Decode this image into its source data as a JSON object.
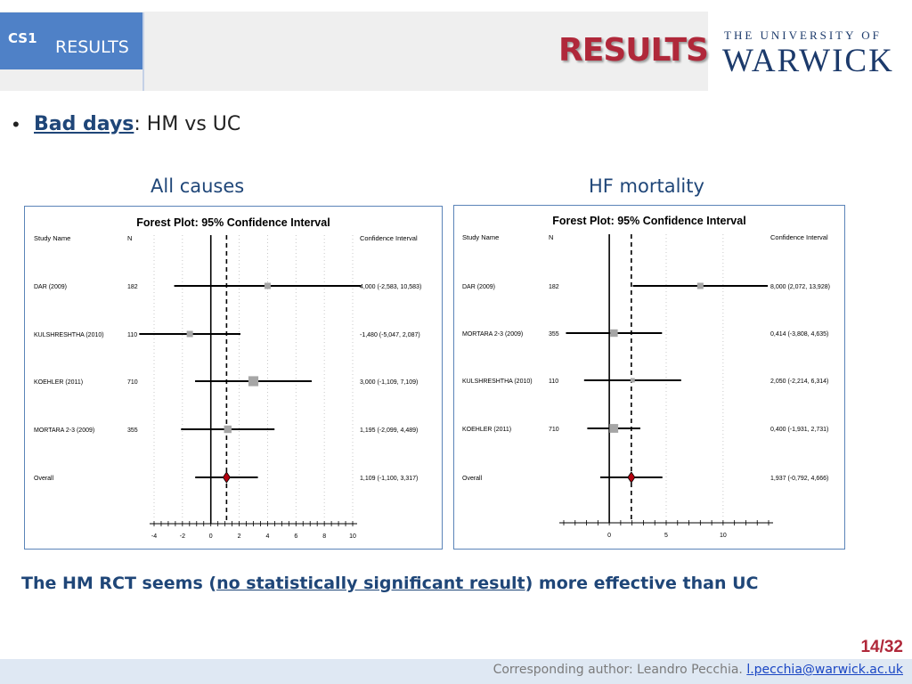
{
  "header": {
    "tab_code": "CS1",
    "tab_label": "RESULTS",
    "title": "RESULTS",
    "logo_top": "THE UNIVERSITY OF",
    "logo_main": "WARWICK"
  },
  "bullet": {
    "term": "Bad days",
    "rest": ": HM vs UC"
  },
  "panels": {
    "left_title": "All causes",
    "right_title": "HF mortality"
  },
  "conclusion": {
    "before": "The HM RCT seems (",
    "underlined": "no statistically significant result",
    "after": ") more effective than UC"
  },
  "page": {
    "number": "14/32"
  },
  "footer": {
    "label": "Corresponding author: Leandro Pecchia. ",
    "email": "l.pecchia@warwick.ac.uk"
  },
  "colors": {
    "accent": "#b0283a",
    "navy": "#1f4678",
    "tab": "#4f81c7",
    "diamond": "#b4000f"
  },
  "chart_data": [
    {
      "type": "forest",
      "title": "Forest Plot: 95% Confidence Interval",
      "columns": [
        "Study Name",
        "N",
        "Confidence Interval"
      ],
      "xlim": [
        -4,
        10
      ],
      "xticks": [
        "-4",
        "-2",
        "0",
        "2",
        "4",
        "6",
        "8",
        "10"
      ],
      "xtick_values": [
        -4,
        -2,
        0,
        2,
        4,
        6,
        8,
        10
      ],
      "minor_tick_step": 0.5,
      "null_line": 0,
      "dashed_line": 1.109,
      "rows": [
        {
          "name": "DAR (2009)",
          "n": "182",
          "est": 4.0,
          "lo": -2.583,
          "hi": 10.583,
          "ci": "4,000 (-2,583, 10,583)",
          "weight": 1.0
        },
        {
          "name": "KULSHRESHTHA (2010)",
          "n": "110",
          "est": -1.48,
          "lo": -5.047,
          "hi": 2.087,
          "ci": "-1,480 (-5,047, 2,087)",
          "weight": 1.0
        },
        {
          "name": "KOEHLER (2011)",
          "n": "710",
          "est": 3.0,
          "lo": -1.109,
          "hi": 7.109,
          "ci": "3,000 (-1,109, 7,109)",
          "weight": 1.6
        },
        {
          "name": "MORTARA 2-3 (2009)",
          "n": "355",
          "est": 1.195,
          "lo": -2.099,
          "hi": 4.489,
          "ci": "1,195 (-2,099, 4,489)",
          "weight": 1.2
        }
      ],
      "overall": {
        "name": "Overall",
        "est": 1.109,
        "lo": -1.1,
        "hi": 3.317,
        "ci": "1,109 (-1,100, 3,317)"
      }
    },
    {
      "type": "forest",
      "title": "Forest Plot: 95% Confidence Interval",
      "columns": [
        "Study Name",
        "N",
        "Confidence Interval"
      ],
      "xlim": [
        -4,
        14
      ],
      "xticks": [
        "0",
        "5",
        "10"
      ],
      "xtick_values": [
        0,
        5,
        10
      ],
      "minor_tick_step": 1,
      "null_line": 0,
      "dashed_line": 1.937,
      "rows": [
        {
          "name": "DAR (2009)",
          "n": "182",
          "est": 8.0,
          "lo": 2.072,
          "hi": 13.928,
          "ci": "8,000 (2,072, 13,928)",
          "weight": 1.0
        },
        {
          "name": "MORTARA 2-3 (2009)",
          "n": "355",
          "est": 0.414,
          "lo": -3.808,
          "hi": 4.635,
          "ci": "0,414 (-3,808, 4,635)",
          "weight": 1.2
        },
        {
          "name": "KULSHRESHTHA (2010)",
          "n": "110",
          "est": 2.05,
          "lo": -2.214,
          "hi": 6.314,
          "ci": "2,050 (-2,214, 6,314)",
          "weight": 0.7
        },
        {
          "name": "KOEHLER (2011)",
          "n": "710",
          "est": 0.4,
          "lo": -1.931,
          "hi": 2.731,
          "ci": "0,400 (-1,931, 2,731)",
          "weight": 1.4
        }
      ],
      "overall": {
        "name": "Overall",
        "est": 1.937,
        "lo": -0.792,
        "hi": 4.666,
        "ci": "1,937 (-0,792, 4,666)"
      }
    }
  ]
}
